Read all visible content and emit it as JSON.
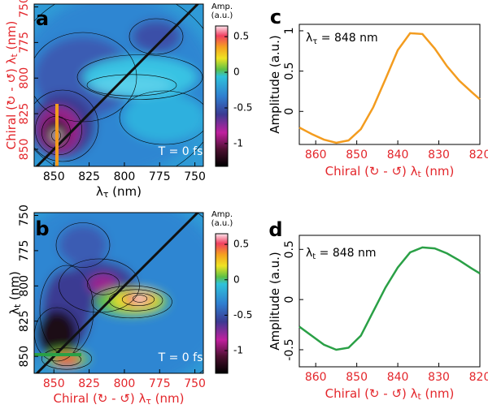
{
  "chart_data": [
    {
      "type": "contour",
      "panel": "a",
      "annotation": "T = 0 fs",
      "xlabel": {
        "text": "λ",
        "sub": "τ",
        "unit": " (nm)",
        "color": "#000000"
      },
      "ylabel": {
        "text": "Chiral (↻ - ↺) λ",
        "sub": "t",
        "unit": " (nm)",
        "color": "#e3262b"
      },
      "xtick_color": "#000000",
      "ytick_color": "#e3262b",
      "xlim": [
        864,
        744
      ],
      "ylim": [
        862,
        748
      ],
      "xticks": [
        850,
        825,
        800,
        775,
        750
      ],
      "yticks": [
        850,
        825,
        800,
        775,
        750
      ],
      "colorbar": {
        "title": "Amp.",
        "unit": "(a.u.)",
        "lim": [
          -1.32,
          0.65
        ],
        "ticks": [
          0.5,
          0,
          -0.5,
          -1
        ]
      }
    },
    {
      "type": "line",
      "panel": "c",
      "annotation": {
        "text": "λ",
        "sub": "τ",
        "rest": " = 848 nm"
      },
      "xlabel": {
        "text": "Chiral (↻ - ↺) λ",
        "sub": "t",
        "unit": " (nm)",
        "color": "#e3262b"
      },
      "ylabel": {
        "text": "Amplitude (a.u.)",
        "color": "#000000"
      },
      "xtick_color": "#e3262b",
      "ytick_color": "#000000",
      "xlim": [
        864,
        820
      ],
      "ylim": [
        -0.41,
        1.08
      ],
      "xticks": [
        860,
        850,
        840,
        830,
        820
      ],
      "yticks": [
        0,
        0.5,
        1
      ],
      "series": [
        {
          "color": "#f39c1f",
          "x": [
            864,
            861,
            858,
            855,
            852,
            849,
            846,
            843,
            840,
            837,
            834,
            831,
            828,
            825,
            822,
            820
          ],
          "values": [
            -0.2,
            -0.28,
            -0.35,
            -0.39,
            -0.36,
            -0.22,
            0.05,
            0.4,
            0.76,
            0.97,
            0.96,
            0.78,
            0.56,
            0.38,
            0.24,
            0.15
          ]
        }
      ]
    },
    {
      "type": "contour",
      "panel": "b",
      "annotation": "T = 0 fs",
      "xlabel": {
        "text": "Chiral (↻ - ↺) λ",
        "sub": "τ",
        "unit": " (nm)",
        "color": "#e3262b"
      },
      "ylabel": {
        "text": "λ",
        "sub": "t",
        "unit": " (nm)",
        "color": "#000000"
      },
      "xtick_color": "#e3262b",
      "ytick_color": "#000000",
      "xlim": [
        864,
        744
      ],
      "ylim": [
        862,
        748
      ],
      "xticks": [
        850,
        825,
        800,
        775,
        750
      ],
      "yticks": [
        850,
        825,
        800,
        775,
        750
      ],
      "colorbar": {
        "title": "Amp.",
        "unit": "(a.u.)",
        "lim": [
          -1.32,
          0.65
        ],
        "ticks": [
          0.5,
          0,
          -0.5,
          -1
        ]
      }
    },
    {
      "type": "line",
      "panel": "d",
      "annotation": {
        "text": "λ",
        "sub": "t",
        "rest": " = 848 nm"
      },
      "xlabel": {
        "text": "Chiral (↻ - ↺) λ",
        "sub": "t",
        "unit": " (nm)",
        "color": "#e3262b"
      },
      "ylabel": {
        "text": "Amplitude (a.u.)",
        "color": "#000000"
      },
      "xtick_color": "#e3262b",
      "ytick_color": "#000000",
      "xlim": [
        864,
        820
      ],
      "ylim": [
        -0.67,
        0.64
      ],
      "xticks": [
        860,
        850,
        840,
        830,
        820
      ],
      "yticks": [
        -0.5,
        0,
        0.5
      ],
      "series": [
        {
          "color": "#2aa046",
          "x": [
            864,
            861,
            858,
            855,
            852,
            849,
            846,
            843,
            840,
            837,
            834,
            831,
            828,
            825,
            822,
            820
          ],
          "values": [
            -0.27,
            -0.36,
            -0.45,
            -0.5,
            -0.48,
            -0.36,
            -0.12,
            0.12,
            0.32,
            0.47,
            0.52,
            0.51,
            0.46,
            0.39,
            0.31,
            0.26
          ]
        }
      ]
    }
  ]
}
